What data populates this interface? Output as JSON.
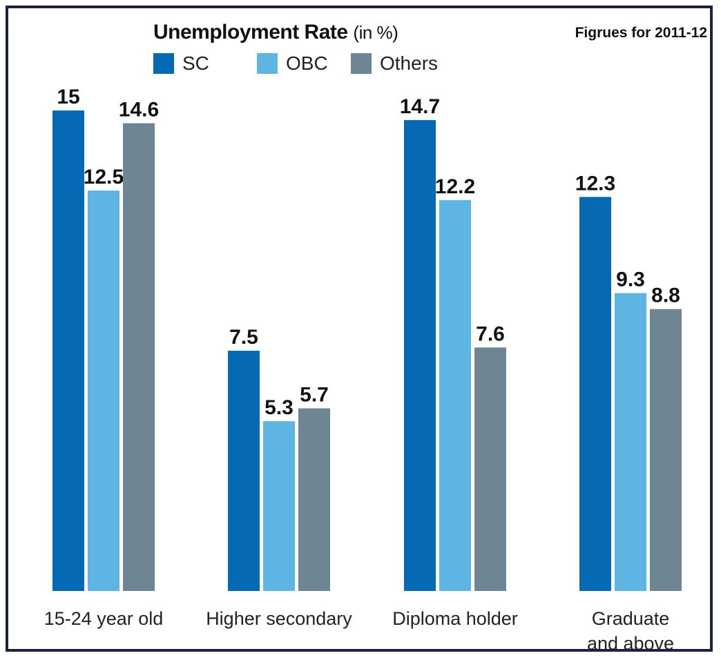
{
  "chart_data": {
    "type": "bar",
    "title": "Unemployment Rate",
    "title_unit": "(in %)",
    "note": "Figrues for 2011-12",
    "categories": [
      "15-24 year old",
      "Higher secondary",
      "Diploma holder",
      "Graduate\nand above"
    ],
    "series": [
      {
        "name": "SC",
        "color": "#0569b4",
        "values": [
          15,
          7.5,
          14.7,
          12.3
        ]
      },
      {
        "name": "OBC",
        "color": "#5eb5e3",
        "values": [
          12.5,
          5.3,
          12.2,
          9.3
        ]
      },
      {
        "name": "Others",
        "color": "#6e8594",
        "values": [
          14.6,
          5.7,
          7.6,
          8.8
        ]
      }
    ],
    "value_labels": [
      [
        "15",
        "12.5",
        "14.6"
      ],
      [
        "7.5",
        "5.3",
        "5.7"
      ],
      [
        "14.7",
        "12.2",
        "7.6"
      ],
      [
        "12.3",
        "9.3",
        "8.8"
      ]
    ],
    "ylim": [
      0,
      15
    ],
    "grid": false,
    "legend": "top-left"
  }
}
